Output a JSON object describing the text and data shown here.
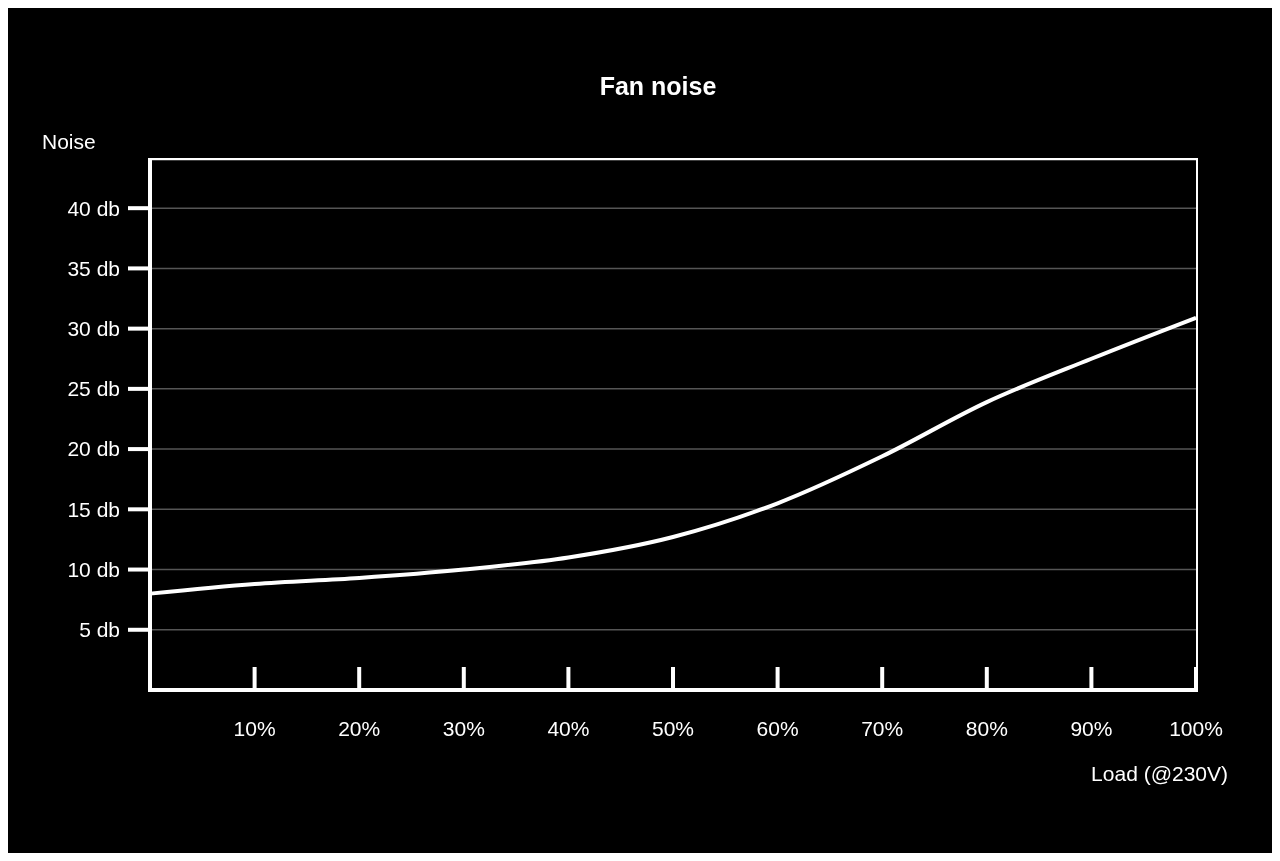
{
  "chart_data": {
    "type": "line",
    "title": "Fan noise",
    "xlabel": "Load (@230V)",
    "ylabel": "Noise",
    "x": [
      0,
      10,
      20,
      30,
      40,
      50,
      60,
      70,
      80,
      90,
      100
    ],
    "series": [
      {
        "color": "#ffffff",
        "values": [
          8.0,
          8.8,
          9.3,
          10.0,
          11.0,
          12.7,
          15.5,
          19.4,
          23.9,
          27.5,
          30.9
        ]
      }
    ],
    "xlim": [
      0,
      100
    ],
    "xticks": [
      {
        "value": 10,
        "label": "10%"
      },
      {
        "value": 20,
        "label": "20%"
      },
      {
        "value": 30,
        "label": "30%"
      },
      {
        "value": 40,
        "label": "40%"
      },
      {
        "value": 50,
        "label": "50%"
      },
      {
        "value": 60,
        "label": "60%"
      },
      {
        "value": 70,
        "label": "70%"
      },
      {
        "value": 80,
        "label": "80%"
      },
      {
        "value": 90,
        "label": "90%"
      },
      {
        "value": 100,
        "label": "100%"
      }
    ],
    "ylim": [
      0,
      44
    ],
    "yticks": [
      {
        "value": 5,
        "label": "5 db"
      },
      {
        "value": 10,
        "label": "10 db"
      },
      {
        "value": 15,
        "label": "15 db"
      },
      {
        "value": 20,
        "label": "20 db"
      },
      {
        "value": 25,
        "label": "25 db"
      },
      {
        "value": 30,
        "label": "30 db"
      },
      {
        "value": 35,
        "label": "35 db"
      },
      {
        "value": 40,
        "label": "40 db"
      }
    ],
    "grid": "y",
    "marker": "none",
    "line_style": "solid"
  }
}
